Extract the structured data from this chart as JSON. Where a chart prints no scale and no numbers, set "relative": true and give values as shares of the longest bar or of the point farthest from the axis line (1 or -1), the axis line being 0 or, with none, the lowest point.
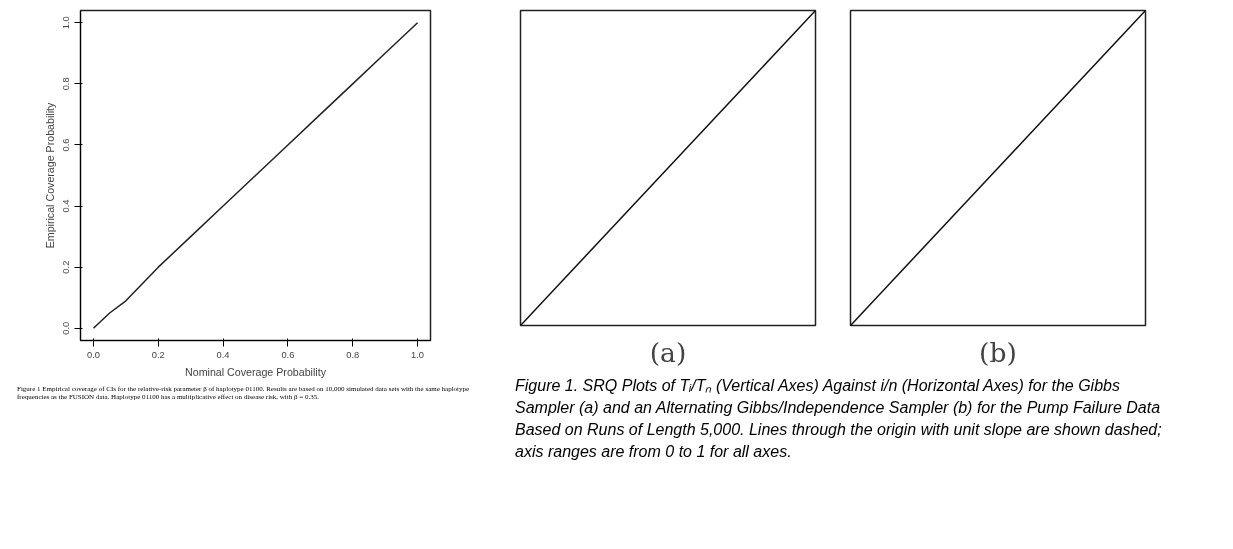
{
  "chart_data": [
    {
      "type": "line",
      "xlabel": "Nominal Coverage Probability",
      "ylabel": "Empirical Coverage Probability",
      "x": [
        0,
        0.05,
        0.1,
        0.2,
        0.3,
        0.4,
        0.5,
        0.6,
        0.7,
        0.8,
        0.9,
        1.0
      ],
      "series": [
        {
          "color": "#222222",
          "values": [
            0,
            0.05,
            0.09,
            0.2,
            0.3,
            0.4,
            0.5,
            0.6,
            0.7,
            0.8,
            0.9,
            1.0
          ]
        }
      ],
      "xlim": [
        -0.04,
        1.04
      ],
      "ylim": [
        -0.04,
        1.04
      ],
      "xticks": [
        {
          "value": 0,
          "label": "0.0"
        },
        0.2,
        0.4,
        0.6,
        0.8,
        {
          "value": 1,
          "label": "1.0"
        }
      ],
      "yticks": [
        {
          "value": 0,
          "label": "0.0"
        },
        0.2,
        0.4,
        0.6,
        0.8,
        {
          "value": 1,
          "label": "1.0"
        }
      ],
      "grid": false,
      "annotations": [
        "Figure 1   Empirical coverage of CIs for the relative-risk parameter β of haplotype 01100. Results are based on 10,000 simulated data sets with the same haplotype frequencies as the FUSION data. Haplotype 01100 has a multiplicative effect on disease risk, with β = 0.35."
      ]
    },
    {
      "type": "line",
      "xlabel": "(a)",
      "relative": true,
      "tick_labels": false,
      "grid": false,
      "categories": [
        null,
        null,
        null,
        null,
        null,
        null,
        null,
        null,
        null,
        null,
        null
      ],
      "series": [
        {
          "color": "#111111",
          "values": [
            0,
            0.1,
            0.2,
            0.3,
            0.4,
            0.5,
            0.6,
            0.7,
            0.8,
            0.9,
            1.0
          ]
        }
      ]
    },
    {
      "type": "line",
      "xlabel": "(b)",
      "relative": true,
      "tick_labels": false,
      "grid": false,
      "categories": [
        null,
        null,
        null,
        null,
        null,
        null,
        null,
        null,
        null,
        null,
        null
      ],
      "series": [
        {
          "color": "#111111",
          "values": [
            0,
            0.1,
            0.2,
            0.3,
            0.4,
            0.5,
            0.6,
            0.7,
            0.8,
            0.9,
            1.0
          ]
        }
      ],
      "annotations": [
        "Figure 1. SRQ Plots of Tᵢ/Tₙ (Vertical Axes) Against i/n (Horizontal Axes) for the Gibbs Sampler (a) and an Alternating Gibbs/Independence Sampler (b) for the Pump Failure Data Based on Runs of Length 5,000. Lines through the origin with unit slope are shown dashed; axis ranges are from 0 to 1 for all axes."
      ]
    }
  ]
}
